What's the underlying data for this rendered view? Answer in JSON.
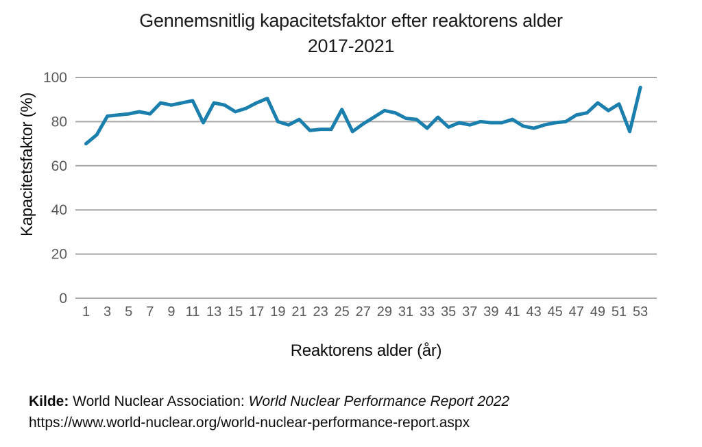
{
  "chart_data": {
    "type": "line",
    "title_line1": "Gennemsnitlig kapacitetsfaktor efter reaktorens alder",
    "title_line2": "2017-2021",
    "xlabel": "Reaktorens alder (år)",
    "ylabel": "Kapacitetsfaktor (%)",
    "x": [
      1,
      2,
      3,
      4,
      5,
      6,
      7,
      8,
      9,
      10,
      11,
      12,
      13,
      14,
      15,
      16,
      17,
      18,
      19,
      20,
      21,
      22,
      23,
      24,
      25,
      26,
      27,
      28,
      29,
      30,
      31,
      32,
      33,
      34,
      35,
      36,
      37,
      38,
      39,
      40,
      41,
      42,
      43,
      44,
      45,
      46,
      47,
      48,
      49,
      50,
      51,
      52,
      53
    ],
    "values": [
      70,
      74,
      82.5,
      83,
      83.5,
      84.5,
      83.5,
      88.5,
      87.5,
      88.5,
      89.5,
      79.5,
      88.5,
      87.5,
      84.5,
      86,
      88.5,
      90.5,
      80,
      78.5,
      81,
      76,
      76.5,
      76.5,
      85.5,
      75.5,
      79,
      82,
      85,
      84,
      81.5,
      81,
      77,
      82,
      77.5,
      79.5,
      78.5,
      80,
      79.5,
      79.5,
      81,
      78,
      77,
      78.5,
      79.5,
      80,
      83,
      84,
      88.5,
      85,
      88,
      75.5,
      95.5
    ],
    "y_ticks": [
      0,
      20,
      40,
      60,
      80,
      100
    ],
    "x_tick_labels": [
      1,
      3,
      5,
      7,
      9,
      11,
      13,
      15,
      17,
      19,
      21,
      23,
      25,
      27,
      29,
      31,
      33,
      35,
      37,
      39,
      41,
      43,
      45,
      47,
      49,
      51,
      53
    ],
    "ylim": [
      0,
      100
    ],
    "grid": true,
    "legend": "none",
    "line_color": "#1b7fae",
    "grid_color": "#a6a6a6",
    "tick_label_color": "#595959"
  },
  "source": {
    "label": "Kilde:",
    "organization": " World Nuclear Association: ",
    "report": "World Nuclear Performance Report 2022",
    "url": "https://www.world-nuclear.org/world-nuclear-performance-report.aspx"
  }
}
